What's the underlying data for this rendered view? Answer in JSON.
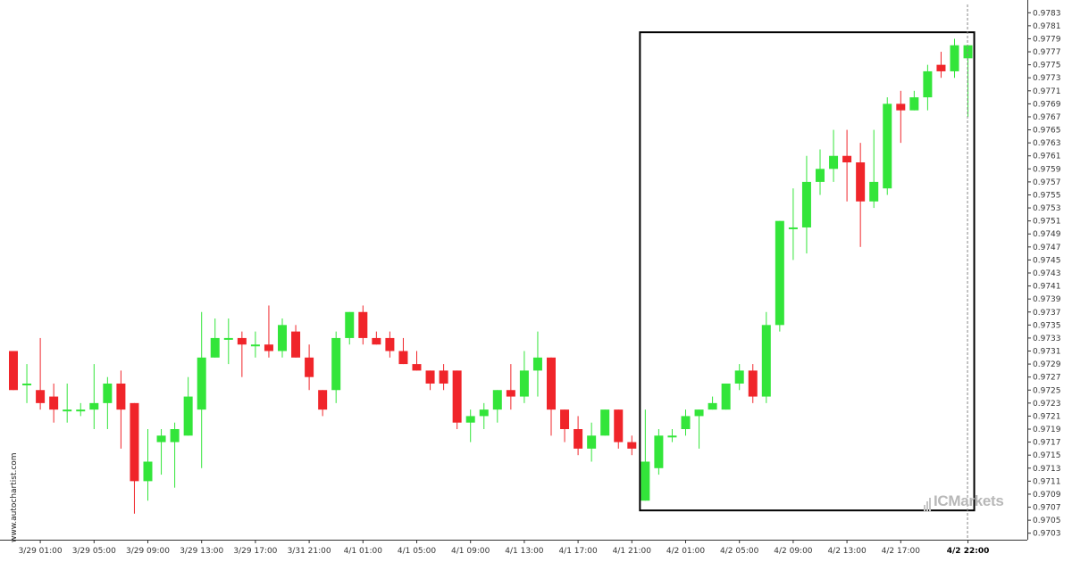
{
  "watermark": "www.autochartist.com",
  "brand": "ICMarkets",
  "colors": {
    "up": "#33e53a",
    "down": "#f0252a",
    "wick": "#444444",
    "box": "#000000",
    "cursor": "#888888",
    "axis": "#333333"
  },
  "chart_data": {
    "type": "candlestick",
    "ylim": [
      0.9702,
      0.9784
    ],
    "y_ticks": [
      "0.9783",
      "0.9781",
      "0.9779",
      "0.9777",
      "0.9775",
      "0.9773",
      "0.9771",
      "0.9769",
      "0.9767",
      "0.9765",
      "0.9763",
      "0.9761",
      "0.9759",
      "0.9757",
      "0.9755",
      "0.9753",
      "0.9751",
      "0.9749",
      "0.9747",
      "0.9745",
      "0.9743",
      "0.9741",
      "0.9739",
      "0.9737",
      "0.9735",
      "0.9733",
      "0.9731",
      "0.9729",
      "0.9727",
      "0.9725",
      "0.9723",
      "0.9721",
      "0.9719",
      "0.9717",
      "0.9715",
      "0.9713",
      "0.9711",
      "0.9709",
      "0.9707",
      "0.9705",
      "0.9703"
    ],
    "x_ticks": [
      {
        "label": "3/29 01:00",
        "index": 2
      },
      {
        "label": "3/29 05:00",
        "index": 6
      },
      {
        "label": "3/29 09:00",
        "index": 10
      },
      {
        "label": "3/29 13:00",
        "index": 14
      },
      {
        "label": "3/29 17:00",
        "index": 18
      },
      {
        "label": "3/31 21:00",
        "index": 22
      },
      {
        "label": "4/1 01:00",
        "index": 26
      },
      {
        "label": "4/1 05:00",
        "index": 30
      },
      {
        "label": "4/1 09:00",
        "index": 34
      },
      {
        "label": "4/1 13:00",
        "index": 38
      },
      {
        "label": "4/1 17:00",
        "index": 42
      },
      {
        "label": "4/1 21:00",
        "index": 46
      },
      {
        "label": "4/2 01:00",
        "index": 50
      },
      {
        "label": "4/2 05:00",
        "index": 54
      },
      {
        "label": "4/2 09:00",
        "index": 58
      },
      {
        "label": "4/2 13:00",
        "index": 62
      },
      {
        "label": "4/2 17:00",
        "index": 66
      },
      {
        "label": "4/2 22:00",
        "index": 71,
        "bold": true
      }
    ],
    "candles": [
      {
        "o": 0.9731,
        "h": 0.9731,
        "l": 0.9725,
        "c": 0.9725
      },
      {
        "o": 0.9726,
        "h": 0.9729,
        "l": 0.9723,
        "c": 0.9726
      },
      {
        "o": 0.9725,
        "h": 0.9733,
        "l": 0.9722,
        "c": 0.9723
      },
      {
        "o": 0.9724,
        "h": 0.9726,
        "l": 0.972,
        "c": 0.9722
      },
      {
        "o": 0.9722,
        "h": 0.9726,
        "l": 0.972,
        "c": 0.9722
      },
      {
        "o": 0.9722,
        "h": 0.9723,
        "l": 0.9721,
        "c": 0.9722
      },
      {
        "o": 0.9722,
        "h": 0.9729,
        "l": 0.9719,
        "c": 0.9723
      },
      {
        "o": 0.9723,
        "h": 0.9727,
        "l": 0.9719,
        "c": 0.9726
      },
      {
        "o": 0.9726,
        "h": 0.9728,
        "l": 0.9716,
        "c": 0.9722
      },
      {
        "o": 0.9723,
        "h": 0.9723,
        "l": 0.9706,
        "c": 0.9711
      },
      {
        "o": 0.9711,
        "h": 0.9719,
        "l": 0.9708,
        "c": 0.9714
      },
      {
        "o": 0.9717,
        "h": 0.9719,
        "l": 0.9712,
        "c": 0.9718
      },
      {
        "o": 0.9717,
        "h": 0.972,
        "l": 0.971,
        "c": 0.9719
      },
      {
        "o": 0.9718,
        "h": 0.9727,
        "l": 0.9718,
        "c": 0.9724
      },
      {
        "o": 0.9722,
        "h": 0.9737,
        "l": 0.9713,
        "c": 0.973
      },
      {
        "o": 0.973,
        "h": 0.9736,
        "l": 0.973,
        "c": 0.9733
      },
      {
        "o": 0.9733,
        "h": 0.9736,
        "l": 0.9729,
        "c": 0.9733
      },
      {
        "o": 0.9733,
        "h": 0.9734,
        "l": 0.9727,
        "c": 0.9732
      },
      {
        "o": 0.9732,
        "h": 0.9734,
        "l": 0.973,
        "c": 0.9732
      },
      {
        "o": 0.9732,
        "h": 0.9738,
        "l": 0.973,
        "c": 0.9731
      },
      {
        "o": 0.9731,
        "h": 0.9736,
        "l": 0.973,
        "c": 0.9735
      },
      {
        "o": 0.9734,
        "h": 0.9735,
        "l": 0.973,
        "c": 0.973
      },
      {
        "o": 0.973,
        "h": 0.9732,
        "l": 0.9725,
        "c": 0.9727
      },
      {
        "o": 0.9725,
        "h": 0.9725,
        "l": 0.9721,
        "c": 0.9722
      },
      {
        "o": 0.9725,
        "h": 0.9734,
        "l": 0.9723,
        "c": 0.9733
      },
      {
        "o": 0.9733,
        "h": 0.9737,
        "l": 0.9732,
        "c": 0.9737
      },
      {
        "o": 0.9737,
        "h": 0.9738,
        "l": 0.9732,
        "c": 0.9733
      },
      {
        "o": 0.9733,
        "h": 0.9734,
        "l": 0.9732,
        "c": 0.9732
      },
      {
        "o": 0.9733,
        "h": 0.9734,
        "l": 0.973,
        "c": 0.9731
      },
      {
        "o": 0.9731,
        "h": 0.9733,
        "l": 0.9729,
        "c": 0.9729
      },
      {
        "o": 0.9729,
        "h": 0.9731,
        "l": 0.9728,
        "c": 0.9728
      },
      {
        "o": 0.9728,
        "h": 0.9728,
        "l": 0.9725,
        "c": 0.9726
      },
      {
        "o": 0.9728,
        "h": 0.9729,
        "l": 0.9725,
        "c": 0.9726
      },
      {
        "o": 0.9728,
        "h": 0.9728,
        "l": 0.9719,
        "c": 0.972
      },
      {
        "o": 0.972,
        "h": 0.9722,
        "l": 0.9717,
        "c": 0.9721
      },
      {
        "o": 0.9721,
        "h": 0.9723,
        "l": 0.9719,
        "c": 0.9722
      },
      {
        "o": 0.9722,
        "h": 0.9725,
        "l": 0.972,
        "c": 0.9725
      },
      {
        "o": 0.9725,
        "h": 0.9729,
        "l": 0.9722,
        "c": 0.9724
      },
      {
        "o": 0.9724,
        "h": 0.9731,
        "l": 0.9723,
        "c": 0.9728
      },
      {
        "o": 0.9728,
        "h": 0.9734,
        "l": 0.9724,
        "c": 0.973
      },
      {
        "o": 0.973,
        "h": 0.973,
        "l": 0.9718,
        "c": 0.9722
      },
      {
        "o": 0.9722,
        "h": 0.9722,
        "l": 0.9717,
        "c": 0.9719
      },
      {
        "o": 0.9719,
        "h": 0.9721,
        "l": 0.9715,
        "c": 0.9716
      },
      {
        "o": 0.9716,
        "h": 0.972,
        "l": 0.9714,
        "c": 0.9718
      },
      {
        "o": 0.9718,
        "h": 0.9722,
        "l": 0.9718,
        "c": 0.9722
      },
      {
        "o": 0.9722,
        "h": 0.9722,
        "l": 0.9716,
        "c": 0.9717
      },
      {
        "o": 0.9717,
        "h": 0.9718,
        "l": 0.9715,
        "c": 0.9716
      },
      {
        "o": 0.9708,
        "h": 0.9722,
        "l": 0.9708,
        "c": 0.9714
      },
      {
        "o": 0.9713,
        "h": 0.9719,
        "l": 0.9712,
        "c": 0.9718
      },
      {
        "o": 0.9718,
        "h": 0.9719,
        "l": 0.9717,
        "c": 0.9718
      },
      {
        "o": 0.9719,
        "h": 0.9722,
        "l": 0.9718,
        "c": 0.9721
      },
      {
        "o": 0.9721,
        "h": 0.9722,
        "l": 0.9716,
        "c": 0.9722
      },
      {
        "o": 0.9722,
        "h": 0.9724,
        "l": 0.9722,
        "c": 0.9723
      },
      {
        "o": 0.9722,
        "h": 0.9726,
        "l": 0.9722,
        "c": 0.9726
      },
      {
        "o": 0.9726,
        "h": 0.9729,
        "l": 0.9725,
        "c": 0.9728
      },
      {
        "o": 0.9728,
        "h": 0.9729,
        "l": 0.9723,
        "c": 0.9724
      },
      {
        "o": 0.9724,
        "h": 0.9737,
        "l": 0.9723,
        "c": 0.9735
      },
      {
        "o": 0.9735,
        "h": 0.9751,
        "l": 0.9734,
        "c": 0.9751
      },
      {
        "o": 0.975,
        "h": 0.9756,
        "l": 0.9745,
        "c": 0.975
      },
      {
        "o": 0.975,
        "h": 0.9761,
        "l": 0.9746,
        "c": 0.9757
      },
      {
        "o": 0.9757,
        "h": 0.9762,
        "l": 0.9755,
        "c": 0.9759
      },
      {
        "o": 0.9759,
        "h": 0.9765,
        "l": 0.9757,
        "c": 0.9761
      },
      {
        "o": 0.9761,
        "h": 0.9765,
        "l": 0.9754,
        "c": 0.976
      },
      {
        "o": 0.976,
        "h": 0.9763,
        "l": 0.9747,
        "c": 0.9754
      },
      {
        "o": 0.9754,
        "h": 0.9765,
        "l": 0.9753,
        "c": 0.9757
      },
      {
        "o": 0.9756,
        "h": 0.977,
        "l": 0.9755,
        "c": 0.9769
      },
      {
        "o": 0.9769,
        "h": 0.9771,
        "l": 0.9763,
        "c": 0.9768
      },
      {
        "o": 0.9768,
        "h": 0.9771,
        "l": 0.9768,
        "c": 0.977
      },
      {
        "o": 0.977,
        "h": 0.9775,
        "l": 0.9768,
        "c": 0.9774
      },
      {
        "o": 0.9775,
        "h": 0.9777,
        "l": 0.9773,
        "c": 0.9774
      },
      {
        "o": 0.9774,
        "h": 0.9779,
        "l": 0.9773,
        "c": 0.9778
      },
      {
        "o": 0.9776,
        "h": 0.9778,
        "l": 0.9767,
        "c": 0.9778
      }
    ],
    "highlight_box": {
      "from_index": 47,
      "to_index": 71,
      "ymin": 0.97065,
      "ymax": 0.978
    },
    "cursor_index": 71
  }
}
